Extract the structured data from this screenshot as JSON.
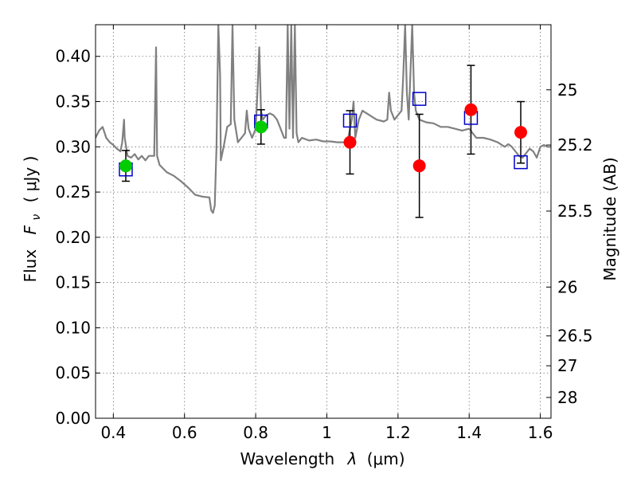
{
  "chart_data": {
    "type": "scatter",
    "title": "",
    "xlabel": "Wavelength",
    "xlabel_sym": "λ",
    "xlabel_unit": "(μm)",
    "ylabel": "Flux",
    "ylabel_sym": "F",
    "ylabel_sub": "ν",
    "ylabel_unit": "( μJy )",
    "ylabel_right": "Magnitude (AB)",
    "xlim": [
      0.35,
      1.63
    ],
    "ylim": [
      0.0,
      0.435
    ],
    "grid": true,
    "x_ticks": [
      0.4,
      0.6,
      0.8,
      1.0,
      1.2,
      1.4,
      1.6
    ],
    "x_tick_labels": [
      "0.4",
      "0.6",
      "0.8",
      "1",
      "1.2",
      "1.4",
      "1.6"
    ],
    "y_ticks": [
      0.0,
      0.05,
      0.1,
      0.15,
      0.2,
      0.25,
      0.3,
      0.35,
      0.4
    ],
    "y_tick_labels": [
      "0.00",
      "0.05",
      "0.10",
      "0.15",
      "0.20",
      "0.25",
      "0.30",
      "0.35",
      "0.40"
    ],
    "right_ticks": [
      {
        "label": "25",
        "flux": 0.363
      },
      {
        "label": "25.2",
        "flux": 0.302
      },
      {
        "label": "25.5",
        "flux": 0.229
      },
      {
        "label": "26",
        "flux": 0.145
      },
      {
        "label": "26.5",
        "flux": 0.091
      },
      {
        "label": "27",
        "flux": 0.058
      },
      {
        "label": "28",
        "flux": 0.023
      }
    ],
    "model_spectrum": {
      "color": "#808080",
      "points": [
        [
          0.35,
          0.31
        ],
        [
          0.36,
          0.318
        ],
        [
          0.37,
          0.322
        ],
        [
          0.38,
          0.31
        ],
        [
          0.39,
          0.305
        ],
        [
          0.4,
          0.302
        ],
        [
          0.41,
          0.298
        ],
        [
          0.42,
          0.295
        ],
        [
          0.425,
          0.305
        ],
        [
          0.43,
          0.33
        ],
        [
          0.432,
          0.31
        ],
        [
          0.44,
          0.29
        ],
        [
          0.45,
          0.288
        ],
        [
          0.46,
          0.292
        ],
        [
          0.47,
          0.286
        ],
        [
          0.48,
          0.29
        ],
        [
          0.49,
          0.285
        ],
        [
          0.5,
          0.29
        ],
        [
          0.51,
          0.29
        ],
        [
          0.515,
          0.29
        ],
        [
          0.52,
          0.41
        ],
        [
          0.523,
          0.29
        ],
        [
          0.53,
          0.28
        ],
        [
          0.55,
          0.272
        ],
        [
          0.57,
          0.268
        ],
        [
          0.59,
          0.262
        ],
        [
          0.61,
          0.255
        ],
        [
          0.63,
          0.247
        ],
        [
          0.65,
          0.245
        ],
        [
          0.67,
          0.244
        ],
        [
          0.675,
          0.23
        ],
        [
          0.68,
          0.227
        ],
        [
          0.685,
          0.235
        ],
        [
          0.69,
          0.3
        ],
        [
          0.695,
          0.435
        ],
        [
          0.7,
          0.38
        ],
        [
          0.702,
          0.285
        ],
        [
          0.71,
          0.3
        ],
        [
          0.72,
          0.322
        ],
        [
          0.73,
          0.325
        ],
        [
          0.735,
          0.435
        ],
        [
          0.74,
          0.33
        ],
        [
          0.75,
          0.305
        ],
        [
          0.76,
          0.31
        ],
        [
          0.77,
          0.315
        ],
        [
          0.775,
          0.34
        ],
        [
          0.78,
          0.32
        ],
        [
          0.79,
          0.31
        ],
        [
          0.8,
          0.32
        ],
        [
          0.805,
          0.36
        ],
        [
          0.81,
          0.41
        ],
        [
          0.815,
          0.34
        ],
        [
          0.82,
          0.33
        ],
        [
          0.83,
          0.335
        ],
        [
          0.84,
          0.337
        ],
        [
          0.85,
          0.335
        ],
        [
          0.86,
          0.33
        ],
        [
          0.87,
          0.32
        ],
        [
          0.88,
          0.31
        ],
        [
          0.885,
          0.31
        ],
        [
          0.89,
          0.435
        ],
        [
          0.895,
          0.32
        ],
        [
          0.9,
          0.435
        ],
        [
          0.905,
          0.31
        ],
        [
          0.91,
          0.435
        ],
        [
          0.915,
          0.315
        ],
        [
          0.92,
          0.305
        ],
        [
          0.93,
          0.31
        ],
        [
          0.95,
          0.307
        ],
        [
          0.97,
          0.308
        ],
        [
          0.99,
          0.306
        ],
        [
          1.01,
          0.306
        ],
        [
          1.03,
          0.305
        ],
        [
          1.05,
          0.305
        ],
        [
          1.06,
          0.31
        ],
        [
          1.07,
          0.33
        ],
        [
          1.075,
          0.35
        ],
        [
          1.08,
          0.31
        ],
        [
          1.09,
          0.33
        ],
        [
          1.1,
          0.34
        ],
        [
          1.12,
          0.335
        ],
        [
          1.14,
          0.33
        ],
        [
          1.16,
          0.328
        ],
        [
          1.17,
          0.33
        ],
        [
          1.175,
          0.36
        ],
        [
          1.18,
          0.34
        ],
        [
          1.19,
          0.33
        ],
        [
          1.2,
          0.335
        ],
        [
          1.21,
          0.34
        ],
        [
          1.215,
          0.38
        ],
        [
          1.22,
          0.435
        ],
        [
          1.225,
          0.36
        ],
        [
          1.23,
          0.33
        ],
        [
          1.24,
          0.435
        ],
        [
          1.245,
          0.36
        ],
        [
          1.25,
          0.34
        ],
        [
          1.26,
          0.33
        ],
        [
          1.28,
          0.327
        ],
        [
          1.3,
          0.326
        ],
        [
          1.32,
          0.322
        ],
        [
          1.34,
          0.322
        ],
        [
          1.36,
          0.32
        ],
        [
          1.38,
          0.318
        ],
        [
          1.4,
          0.32
        ],
        [
          1.42,
          0.31
        ],
        [
          1.44,
          0.31
        ],
        [
          1.46,
          0.308
        ],
        [
          1.48,
          0.305
        ],
        [
          1.5,
          0.3
        ],
        [
          1.51,
          0.303
        ],
        [
          1.52,
          0.3
        ],
        [
          1.53,
          0.295
        ],
        [
          1.54,
          0.29
        ],
        [
          1.55,
          0.288
        ],
        [
          1.56,
          0.293
        ],
        [
          1.57,
          0.298
        ],
        [
          1.58,
          0.295
        ],
        [
          1.59,
          0.288
        ],
        [
          1.6,
          0.3
        ],
        [
          1.61,
          0.302
        ],
        [
          1.62,
          0.3
        ],
        [
          1.63,
          0.3
        ]
      ]
    },
    "series": [
      {
        "marker": "square-open",
        "color": "#0000cc",
        "points": [
          {
            "x": 0.435,
            "y": 0.275
          },
          {
            "x": 0.815,
            "y": 0.328
          },
          {
            "x": 1.065,
            "y": 0.329
          },
          {
            "x": 1.26,
            "y": 0.353
          },
          {
            "x": 1.405,
            "y": 0.332
          },
          {
            "x": 1.545,
            "y": 0.283
          }
        ]
      },
      {
        "marker": "circle-filled",
        "color": "#00cc00",
        "points": [
          {
            "x": 0.435,
            "y": 0.279,
            "err": 0.017
          },
          {
            "x": 0.815,
            "y": 0.322,
            "err": 0.019
          }
        ]
      },
      {
        "marker": "circle-filled",
        "color": "#ff0000",
        "points": [
          {
            "x": 1.065,
            "y": 0.305,
            "err": 0.035
          },
          {
            "x": 1.26,
            "y": 0.279,
            "err": 0.057
          },
          {
            "x": 1.405,
            "y": 0.341,
            "err": 0.049
          },
          {
            "x": 1.545,
            "y": 0.316,
            "err": 0.034
          }
        ]
      }
    ]
  }
}
